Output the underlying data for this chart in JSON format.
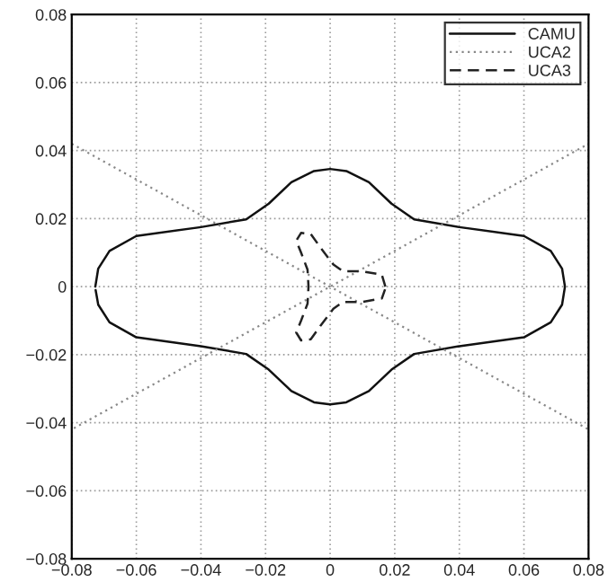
{
  "chart_data": {
    "type": "line",
    "xlim": [
      -0.08,
      0.08
    ],
    "ylim": [
      -0.08,
      0.08
    ],
    "xticks": [
      {
        "value": -0.08,
        "label": "−0.08"
      },
      {
        "value": -0.06,
        "label": "−0.06"
      },
      {
        "value": -0.04,
        "label": "−0.04"
      },
      {
        "value": -0.02,
        "label": "−0.02"
      },
      0,
      0.02,
      0.04,
      0.06,
      0.08
    ],
    "yticks": [
      {
        "value": -0.08,
        "label": "−0.08"
      },
      {
        "value": -0.06,
        "label": "−0.06"
      },
      {
        "value": -0.04,
        "label": "−0.04"
      },
      {
        "value": -0.02,
        "label": "−0.02"
      },
      0,
      0.02,
      0.04,
      0.06,
      0.08
    ],
    "grid": true,
    "legend": "top right",
    "series": [
      {
        "name": "CAMU",
        "color": "#111111",
        "line_style": "solid",
        "x": [
          -0.0727,
          -0.0718,
          -0.0683,
          -0.06,
          -0.04,
          -0.026,
          -0.019,
          -0.012,
          -0.005,
          0,
          0.005,
          0.012,
          0.019,
          0.026,
          0.04,
          0.06,
          0.0683,
          0.0718,
          0.0727,
          0.0718,
          0.0683,
          0.06,
          0.04,
          0.026,
          0.019,
          0.012,
          0.005,
          0,
          -0.005,
          -0.012,
          -0.019,
          -0.026,
          -0.04,
          -0.06,
          -0.0683,
          -0.0718,
          -0.0726
        ],
        "values": [
          0,
          0.0053,
          0.0105,
          0.0149,
          0.0175,
          0.0198,
          0.0244,
          0.0307,
          0.034,
          0.0346,
          0.034,
          0.0307,
          0.0244,
          0.0198,
          0.0175,
          0.0149,
          0.0105,
          0.0053,
          0,
          -0.0053,
          -0.0105,
          -0.0149,
          -0.0175,
          -0.0198,
          -0.0244,
          -0.0307,
          -0.034,
          -0.0346,
          -0.034,
          -0.0307,
          -0.0244,
          -0.0198,
          -0.0175,
          -0.0149,
          -0.0105,
          -0.0053,
          -0.001
        ]
      },
      {
        "name": "UCA2",
        "color": "#888888",
        "line_style": "dotted",
        "x": [
          -0.08,
          0,
          0.08,
          0.08,
          0,
          -0.08
        ],
        "values": [
          0.042,
          0,
          -0.042,
          0.042,
          0,
          -0.042
        ]
      },
      {
        "name": "UCA3",
        "color": "#222222",
        "line_style": "dashed",
        "x": [
          0.0171,
          0.016,
          0.01,
          0.004,
          0.001,
          -0.003,
          -0.006,
          -0.009,
          -0.0105,
          -0.009,
          -0.007,
          -0.0067,
          -0.007,
          -0.009,
          -0.0105,
          -0.009,
          -0.006,
          -0.003,
          0.001,
          0.004,
          0.01,
          0.016,
          0.017
        ],
        "values": [
          0,
          0.0035,
          0.0045,
          0.0045,
          0.0065,
          0.0115,
          0.0155,
          0.0158,
          0.0135,
          0.01,
          0.005,
          0,
          -0.005,
          -0.01,
          -0.0135,
          -0.0158,
          -0.0155,
          -0.0115,
          -0.0065,
          -0.0045,
          -0.0045,
          -0.0035,
          -0.0008
        ]
      }
    ]
  }
}
